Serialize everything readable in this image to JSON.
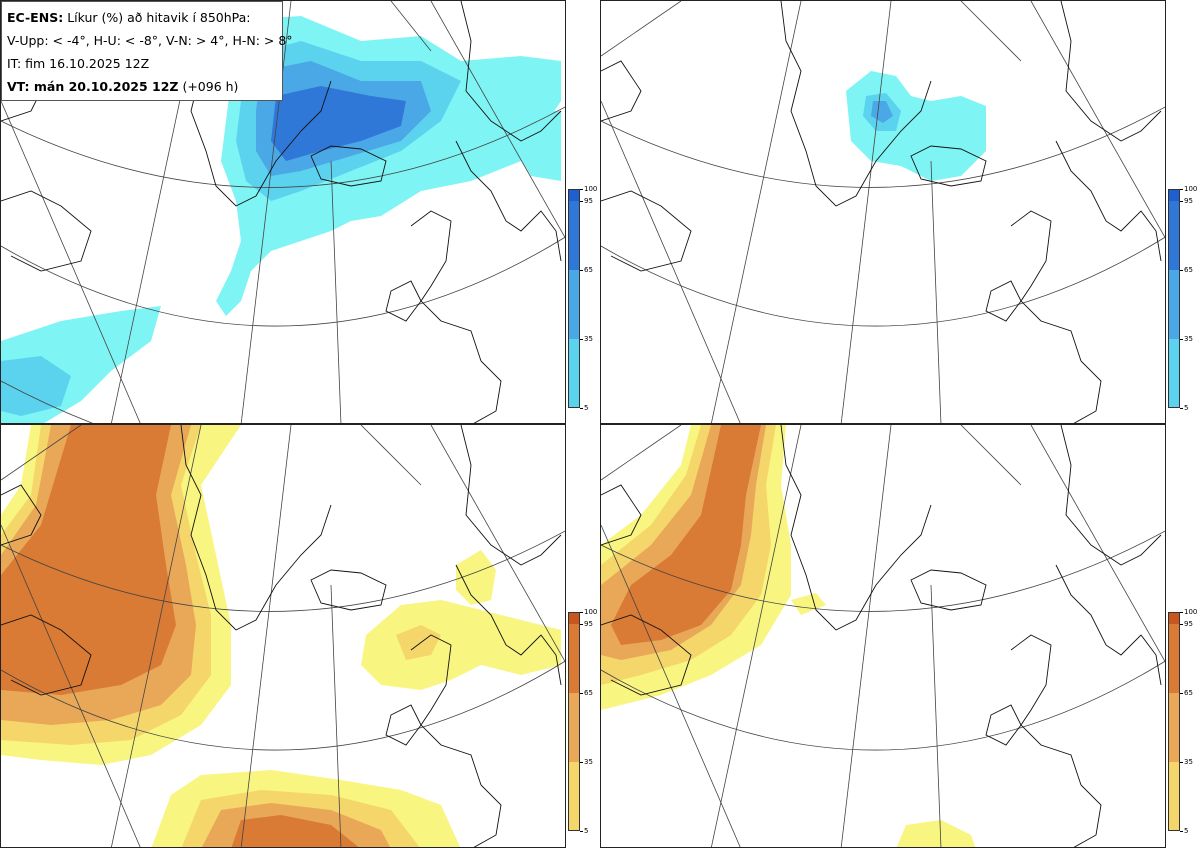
{
  "header": {
    "model_label": "EC-ENS:",
    "title_rest": "Líkur (%) að hitavik í 850hPa:",
    "legend_line": "V-Upp: < -4°, H-U: < -8°, V-N: > 4°, H-N: > 8°",
    "init_time": "IT: fim 16.10.2025 12Z",
    "valid_label": "VT: mán 20.10.2025 12Z",
    "lead_time": "(+096 h)"
  },
  "panels": [
    {
      "id": "V-Upp",
      "position": "top-left",
      "color_scale": "blue"
    },
    {
      "id": "H-U",
      "position": "top-right",
      "color_scale": "blue"
    },
    {
      "id": "V-N",
      "position": "bottom-left",
      "color_scale": "orange"
    },
    {
      "id": "H-N",
      "position": "bottom-right",
      "color_scale": "orange"
    }
  ],
  "colorbar": {
    "ticks": [
      "100",
      "95",
      "65",
      "35",
      "5"
    ],
    "levels": [
      5,
      35,
      65,
      95,
      100
    ],
    "blue_colors": [
      "#7ff4f4",
      "#5cd3ee",
      "#4aa8e6",
      "#2f78d8",
      "#1f5fcf"
    ],
    "orange_colors": [
      "#f8f580",
      "#f4d66a",
      "#e9a858",
      "#d97a35",
      "#c9561f"
    ]
  }
}
